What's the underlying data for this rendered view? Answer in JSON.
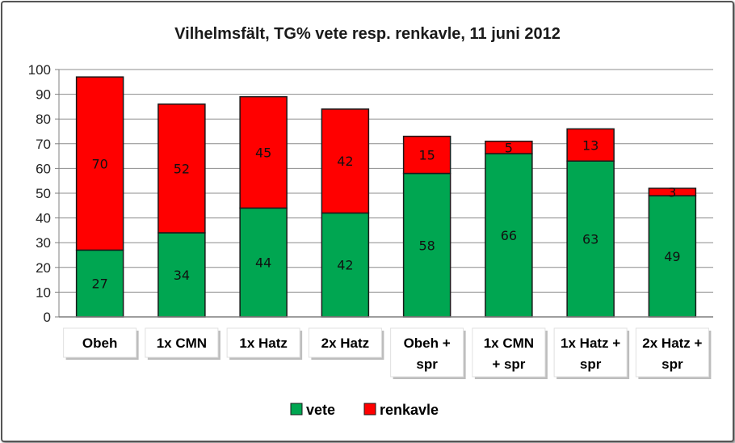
{
  "chart_data": {
    "type": "bar",
    "stacked": true,
    "title": "Vilhelmsfält, TG% vete resp. renkavle, 11 juni 2012",
    "categories": [
      "Obeh",
      "1x CMN",
      "1x Hatz",
      "2x Hatz",
      "Obeh + spr",
      "1x CMN + spr",
      "1x Hatz + spr",
      "2x Hatz + spr"
    ],
    "category_lines": [
      [
        "Obeh"
      ],
      [
        "1x CMN"
      ],
      [
        "1x Hatz"
      ],
      [
        "2x Hatz"
      ],
      [
        "Obeh +",
        "spr"
      ],
      [
        "1x CMN",
        "+ spr"
      ],
      [
        "1x Hatz +",
        "spr"
      ],
      [
        "2x Hatz +",
        "spr"
      ]
    ],
    "series": [
      {
        "name": "vete",
        "color": "#00a651",
        "values": [
          27,
          34,
          44,
          42,
          58,
          66,
          63,
          49
        ]
      },
      {
        "name": "renkavle",
        "color": "#ff0000",
        "values": [
          70,
          52,
          45,
          42,
          15,
          5,
          13,
          3
        ]
      }
    ],
    "ylim": [
      0,
      100
    ],
    "yticks": [
      0,
      10,
      20,
      30,
      40,
      50,
      60,
      70,
      80,
      90,
      100
    ],
    "grid": true,
    "legend_position": "bottom"
  }
}
